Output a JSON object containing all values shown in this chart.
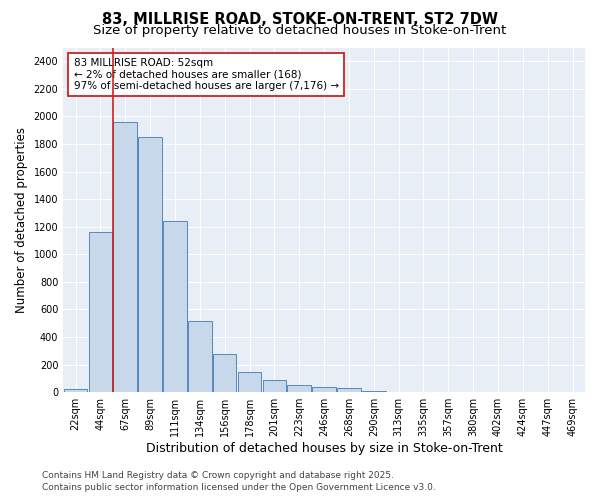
{
  "title_line1": "83, MILLRISE ROAD, STOKE-ON-TRENT, ST2 7DW",
  "title_line2": "Size of property relative to detached houses in Stoke-on-Trent",
  "xlabel": "Distribution of detached houses by size in Stoke-on-Trent",
  "ylabel": "Number of detached properties",
  "categories": [
    "22sqm",
    "44sqm",
    "67sqm",
    "89sqm",
    "111sqm",
    "134sqm",
    "156sqm",
    "178sqm",
    "201sqm",
    "223sqm",
    "246sqm",
    "268sqm",
    "290sqm",
    "313sqm",
    "335sqm",
    "357sqm",
    "380sqm",
    "402sqm",
    "424sqm",
    "447sqm",
    "469sqm"
  ],
  "values": [
    25,
    1165,
    1960,
    1850,
    1240,
    520,
    275,
    150,
    85,
    50,
    35,
    30,
    10,
    5,
    3,
    2,
    2,
    1,
    1,
    1,
    1
  ],
  "bar_color": "#c8d8eb",
  "bar_edge_color": "#5588bb",
  "vline_x_pos": 1.5,
  "vline_color": "#cc2222",
  "annotation_text": "83 MILLRISE ROAD: 52sqm\n← 2% of detached houses are smaller (168)\n97% of semi-detached houses are larger (7,176) →",
  "annotation_box_facecolor": "white",
  "annotation_box_edgecolor": "#cc2222",
  "ylim": [
    0,
    2500
  ],
  "yticks": [
    0,
    200,
    400,
    600,
    800,
    1000,
    1200,
    1400,
    1600,
    1800,
    2000,
    2200,
    2400
  ],
  "footer_line1": "Contains HM Land Registry data © Crown copyright and database right 2025.",
  "footer_line2": "Contains public sector information licensed under the Open Government Licence v3.0.",
  "bg_color": "#ffffff",
  "plot_bg_color": "#e8eef5",
  "grid_color": "#ffffff",
  "title_fontsize": 10.5,
  "subtitle_fontsize": 9.5,
  "ylabel_fontsize": 8.5,
  "xlabel_fontsize": 9,
  "tick_fontsize": 7,
  "annot_fontsize": 7.5,
  "footer_fontsize": 6.5
}
